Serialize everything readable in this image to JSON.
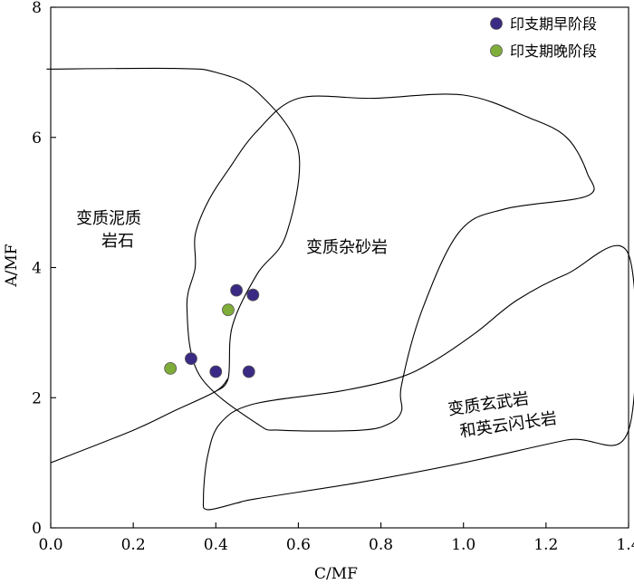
{
  "chart_data": {
    "type": "scatter",
    "xlabel": "C/MF",
    "ylabel": "A/MF",
    "xlim": [
      0.0,
      1.4
    ],
    "ylim": [
      0,
      8
    ],
    "x_ticks": [
      "0.0",
      "0.2",
      "0.4",
      "0.6",
      "0.8",
      "1.0",
      "1.2",
      "1.4"
    ],
    "y_ticks": [
      "0",
      "2",
      "4",
      "6",
      "8"
    ],
    "legend_position": "top-right",
    "grid": false,
    "series": [
      {
        "name": "印支期早阶段",
        "color": "#3b2a84",
        "points": [
          [
            0.45,
            3.65
          ],
          [
            0.49,
            3.58
          ],
          [
            0.34,
            2.6
          ],
          [
            0.4,
            2.4
          ],
          [
            0.48,
            2.4
          ]
        ]
      },
      {
        "name": "印支期晚阶段",
        "color": "#7fad3a",
        "points": [
          [
            0.43,
            3.35
          ],
          [
            0.29,
            2.45
          ]
        ]
      }
    ],
    "region_labels": {
      "pelite_line1": "变质泥质",
      "pelite_line2": "岩石",
      "greywacke": "变质杂砂岩",
      "basalt_line1": "变质玄武岩",
      "basalt_line2": "和英云闪长岩"
    },
    "boundaries": {
      "pelite": [
        [
          -0.01,
          7.05
        ],
        [
          0.3,
          7.06
        ],
        [
          0.4,
          7.0
        ],
        [
          0.5,
          6.7
        ],
        [
          0.6,
          5.8
        ],
        [
          0.57,
          4.5
        ],
        [
          0.5,
          3.9
        ],
        [
          0.44,
          3.1
        ],
        [
          0.43,
          2.3
        ],
        [
          0.4,
          2.1
        ]
      ],
      "greywacke": [
        [
          0.6,
          6.6
        ],
        [
          0.78,
          6.6
        ],
        [
          1.0,
          6.65
        ],
        [
          1.16,
          6.3
        ],
        [
          1.25,
          6.0
        ],
        [
          1.3,
          5.45
        ],
        [
          1.3,
          5.1
        ],
        [
          1.1,
          4.9
        ],
        [
          0.99,
          4.55
        ],
        [
          0.9,
          3.35
        ],
        [
          0.85,
          2.2
        ],
        [
          0.85,
          1.8
        ],
        [
          0.82,
          1.6
        ],
        [
          0.75,
          1.5
        ],
        [
          0.56,
          1.5
        ],
        [
          0.5,
          1.6
        ],
        [
          0.36,
          2.35
        ],
        [
          0.33,
          3.4
        ],
        [
          0.35,
          4.0
        ],
        [
          0.35,
          4.5
        ],
        [
          0.38,
          5.0
        ],
        [
          0.43,
          5.5
        ],
        [
          0.5,
          6.1
        ],
        [
          0.6,
          6.6
        ]
      ],
      "basalt": [
        [
          0.49,
          1.9
        ],
        [
          0.7,
          2.1
        ],
        [
          0.84,
          2.3
        ],
        [
          0.93,
          2.57
        ],
        [
          1.03,
          3.0
        ],
        [
          1.13,
          3.5
        ],
        [
          1.25,
          3.9
        ],
        [
          1.4,
          4.2
        ],
        [
          1.4,
          1.5
        ],
        [
          1.25,
          1.35
        ],
        [
          1.0,
          1.0
        ],
        [
          0.75,
          0.7
        ],
        [
          0.5,
          0.45
        ],
        [
          0.45,
          0.38
        ],
        [
          0.38,
          0.28
        ],
        [
          0.37,
          0.45
        ],
        [
          0.38,
          1.1
        ],
        [
          0.41,
          1.6
        ],
        [
          0.49,
          1.9
        ]
      ],
      "lower_line": [
        [
          0.0,
          1.0
        ],
        [
          0.2,
          1.5
        ],
        [
          0.3,
          1.8
        ],
        [
          0.4,
          2.1
        ],
        [
          0.43,
          2.3
        ]
      ]
    }
  }
}
